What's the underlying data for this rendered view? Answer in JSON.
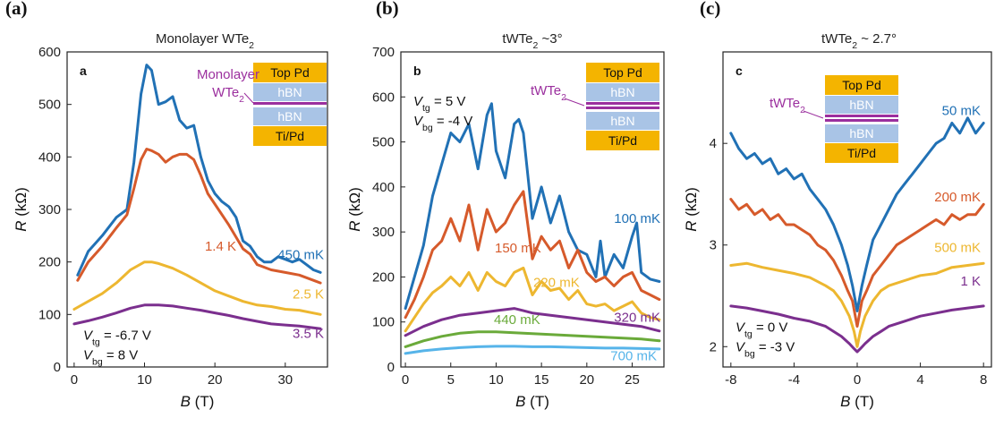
{
  "colors": {
    "blue": "#2171B5",
    "orange": "#D65A2B",
    "yellow": "#EDB730",
    "purple": "#7B2F8E",
    "green": "#6AAA3A",
    "lightblue": "#56B4E9",
    "pd": "#F4B400",
    "hbn": "#A9C4E6",
    "wte2": "#9B2F9E"
  },
  "stack_labels": {
    "top": "Top Pd",
    "hbn": "hBN",
    "bottom": "Ti/Pd"
  },
  "chart_data": [
    {
      "type": "line",
      "panel_label": "(a)",
      "inner_label": "a",
      "title": "Monolayer WTe₂",
      "xlabel": "B (T)",
      "ylabel": "R (kΩ)",
      "xlim": [
        -1,
        36
      ],
      "ylim": [
        0,
        600
      ],
      "xticks": [
        0,
        10,
        20,
        30
      ],
      "yticks": [
        0,
        100,
        200,
        300,
        400,
        500,
        600
      ],
      "device_label": [
        "Monolayer",
        "WTe₂"
      ],
      "gate_text": [
        "V_tg = -6.7 V",
        "V_bg = 8 V"
      ],
      "series": [
        {
          "name": "450 mK",
          "color": "blue",
          "x": [
            0.5,
            2,
            4,
            6,
            7.5,
            8.5,
            9.5,
            10.3,
            11,
            12,
            13,
            14,
            15,
            16,
            17,
            18,
            19,
            20,
            21,
            22,
            23,
            24,
            25,
            26,
            27,
            28,
            29,
            30,
            31,
            32,
            33,
            34,
            35
          ],
          "y": [
            175,
            220,
            250,
            285,
            300,
            390,
            520,
            575,
            565,
            500,
            505,
            515,
            470,
            455,
            460,
            400,
            355,
            330,
            315,
            305,
            285,
            240,
            230,
            210,
            200,
            200,
            210,
            205,
            200,
            205,
            195,
            185,
            180
          ]
        },
        {
          "name": "1.4 K",
          "color": "orange",
          "x": [
            0.5,
            2,
            4,
            6,
            7.5,
            8.5,
            9.5,
            10.3,
            11,
            12,
            13,
            14,
            15,
            16,
            17,
            18,
            19,
            20,
            22,
            24,
            25,
            26,
            28,
            30,
            32,
            34,
            35
          ],
          "y": [
            165,
            200,
            230,
            265,
            290,
            340,
            395,
            415,
            412,
            405,
            390,
            400,
            405,
            405,
            395,
            365,
            330,
            310,
            270,
            225,
            215,
            195,
            185,
            180,
            175,
            165,
            160
          ]
        },
        {
          "name": "2.5 K",
          "color": "yellow",
          "x": [
            0,
            2,
            4,
            6,
            8,
            10,
            11,
            12,
            14,
            16,
            18,
            20,
            22,
            24,
            26,
            28,
            30,
            32,
            35
          ],
          "y": [
            110,
            125,
            140,
            160,
            185,
            200,
            200,
            197,
            188,
            175,
            160,
            145,
            135,
            125,
            118,
            115,
            110,
            108,
            100
          ]
        },
        {
          "name": "3.5 K",
          "color": "purple",
          "x": [
            0,
            2,
            4,
            6,
            8,
            10,
            12,
            14,
            16,
            18,
            20,
            22,
            24,
            26,
            28,
            30,
            32,
            35
          ],
          "y": [
            82,
            88,
            95,
            103,
            112,
            118,
            118,
            116,
            112,
            108,
            103,
            98,
            92,
            87,
            82,
            80,
            78,
            73
          ]
        }
      ]
    },
    {
      "type": "line",
      "panel_label": "(b)",
      "inner_label": "b",
      "title": "tWTe₂ ~3°",
      "xlabel": "B (T)",
      "ylabel": "R (kΩ)",
      "xlim": [
        -0.5,
        28.5
      ],
      "ylim": [
        0,
        700
      ],
      "xticks": [
        0,
        5,
        10,
        15,
        20,
        25
      ],
      "yticks": [
        0,
        100,
        200,
        300,
        400,
        500,
        600,
        700
      ],
      "device_label": [
        "tWTe₂"
      ],
      "gate_text": [
        "V_tg = 5 V",
        "V_bg = -4 V"
      ],
      "series": [
        {
          "name": "100 mK",
          "color": "blue",
          "x": [
            0,
            1,
            2,
            3,
            4,
            5,
            6,
            7,
            8,
            9,
            9.5,
            10,
            11,
            12,
            12.5,
            13,
            14,
            15,
            16,
            17,
            18,
            19,
            20,
            21,
            21.5,
            22,
            23,
            24,
            25,
            25.5,
            26,
            27,
            28
          ],
          "y": [
            130,
            200,
            270,
            380,
            450,
            520,
            500,
            540,
            440,
            560,
            585,
            480,
            420,
            540,
            550,
            520,
            330,
            400,
            320,
            380,
            300,
            260,
            250,
            200,
            280,
            200,
            250,
            220,
            290,
            320,
            210,
            195,
            190
          ]
        },
        {
          "name": "150 mK",
          "color": "orange",
          "x": [
            0,
            1,
            2,
            3,
            4,
            5,
            6,
            7,
            8,
            9,
            10,
            11,
            12,
            13,
            14,
            15,
            16,
            17,
            18,
            19,
            20,
            21,
            22,
            23,
            24,
            25,
            26,
            27,
            28
          ],
          "y": [
            110,
            150,
            200,
            260,
            280,
            330,
            280,
            360,
            260,
            350,
            300,
            320,
            360,
            390,
            240,
            290,
            260,
            280,
            220,
            260,
            210,
            190,
            200,
            180,
            200,
            210,
            170,
            160,
            150
          ]
        },
        {
          "name": "220 mK",
          "color": "yellow",
          "x": [
            0,
            1,
            2,
            3,
            4,
            5,
            6,
            7,
            8,
            9,
            10,
            11,
            12,
            13,
            14,
            15,
            16,
            17,
            18,
            19,
            20,
            21,
            22,
            23,
            24,
            25,
            26,
            27,
            28
          ],
          "y": [
            80,
            110,
            140,
            165,
            180,
            200,
            180,
            210,
            170,
            210,
            190,
            180,
            210,
            220,
            160,
            190,
            170,
            175,
            150,
            170,
            140,
            135,
            140,
            125,
            135,
            145,
            120,
            110,
            105
          ]
        },
        {
          "name": "320 mK",
          "color": "purple",
          "x": [
            0,
            2,
            4,
            6,
            8,
            10,
            12,
            13,
            14,
            16,
            18,
            20,
            22,
            24,
            26,
            28
          ],
          "y": [
            70,
            90,
            105,
            115,
            120,
            125,
            130,
            125,
            120,
            115,
            110,
            105,
            100,
            95,
            90,
            80
          ]
        },
        {
          "name": "440 mK",
          "color": "green",
          "x": [
            0,
            2,
            4,
            6,
            8,
            10,
            12,
            14,
            16,
            18,
            20,
            22,
            24,
            26,
            28
          ],
          "y": [
            45,
            58,
            68,
            75,
            78,
            78,
            76,
            74,
            72,
            70,
            68,
            66,
            64,
            62,
            58
          ]
        },
        {
          "name": "700 mK",
          "color": "lightblue",
          "x": [
            0,
            2,
            4,
            6,
            8,
            10,
            12,
            14,
            16,
            18,
            20,
            22,
            24,
            26,
            28
          ],
          "y": [
            30,
            36,
            40,
            43,
            45,
            46,
            46,
            45,
            45,
            44,
            43,
            42,
            42,
            41,
            40
          ]
        }
      ]
    },
    {
      "type": "line",
      "panel_label": "(c)",
      "inner_label": "c",
      "title": "tWTe₂ ~ 2.7°",
      "xlabel": "B (T)",
      "ylabel": "R (kΩ)",
      "xlim": [
        -8.5,
        8.5
      ],
      "ylim": [
        1.8,
        4.9
      ],
      "xticks": [
        -8,
        -4,
        0,
        4,
        8
      ],
      "yticks": [
        2,
        3,
        4
      ],
      "device_label": [
        "tWTe₂"
      ],
      "gate_text": [
        "V_tg = 0 V",
        "V_bg = -3 V"
      ],
      "series": [
        {
          "name": "50 mK",
          "color": "blue",
          "x": [
            -8,
            -7.5,
            -7,
            -6.5,
            -6,
            -5.5,
            -5,
            -4.5,
            -4,
            -3.5,
            -3,
            -2.5,
            -2,
            -1.5,
            -1,
            -0.6,
            -0.3,
            0,
            0.3,
            0.6,
            1,
            1.5,
            2,
            2.5,
            3,
            3.5,
            4,
            4.5,
            5,
            5.5,
            6,
            6.5,
            7,
            7.5,
            8
          ],
          "y": [
            4.1,
            3.95,
            3.85,
            3.9,
            3.8,
            3.85,
            3.7,
            3.75,
            3.65,
            3.7,
            3.55,
            3.45,
            3.35,
            3.2,
            3.0,
            2.8,
            2.6,
            2.35,
            2.6,
            2.8,
            3.05,
            3.2,
            3.35,
            3.5,
            3.6,
            3.7,
            3.8,
            3.9,
            4.0,
            4.05,
            4.2,
            4.1,
            4.25,
            4.1,
            4.2
          ]
        },
        {
          "name": "200 mK",
          "color": "orange",
          "x": [
            -8,
            -7.5,
            -7,
            -6.5,
            -6,
            -5.5,
            -5,
            -4.5,
            -4,
            -3.5,
            -3,
            -2.5,
            -2,
            -1.5,
            -1,
            -0.6,
            -0.3,
            0,
            0.3,
            0.6,
            1,
            1.5,
            2,
            2.5,
            3,
            3.5,
            4,
            4.5,
            5,
            5.5,
            6,
            6.5,
            7,
            7.5,
            8
          ],
          "y": [
            3.45,
            3.35,
            3.4,
            3.3,
            3.35,
            3.25,
            3.3,
            3.2,
            3.2,
            3.15,
            3.1,
            3.0,
            2.95,
            2.85,
            2.7,
            2.55,
            2.45,
            2.2,
            2.45,
            2.55,
            2.7,
            2.8,
            2.9,
            3.0,
            3.05,
            3.1,
            3.15,
            3.2,
            3.25,
            3.2,
            3.3,
            3.25,
            3.3,
            3.3,
            3.4
          ]
        },
        {
          "name": "500 mK",
          "color": "yellow",
          "x": [
            -8,
            -7,
            -6,
            -5,
            -4,
            -3,
            -2,
            -1.5,
            -1,
            -0.5,
            -0.2,
            0,
            0.2,
            0.5,
            1,
            1.5,
            2,
            3,
            4,
            5,
            6,
            7,
            8
          ],
          "y": [
            2.8,
            2.82,
            2.78,
            2.75,
            2.72,
            2.68,
            2.6,
            2.55,
            2.45,
            2.3,
            2.15,
            2.0,
            2.15,
            2.3,
            2.45,
            2.55,
            2.6,
            2.65,
            2.7,
            2.72,
            2.78,
            2.8,
            2.82
          ]
        },
        {
          "name": "1 K",
          "color": "purple",
          "x": [
            -8,
            -7,
            -6,
            -5,
            -4,
            -3,
            -2,
            -1.5,
            -1,
            -0.5,
            -0.2,
            0,
            0.2,
            0.5,
            1,
            1.5,
            2,
            3,
            4,
            5,
            6,
            7,
            8
          ],
          "y": [
            2.4,
            2.38,
            2.35,
            2.32,
            2.28,
            2.25,
            2.2,
            2.15,
            2.1,
            2.03,
            1.98,
            1.95,
            1.98,
            2.03,
            2.1,
            2.15,
            2.2,
            2.25,
            2.3,
            2.33,
            2.36,
            2.38,
            2.4
          ]
        }
      ]
    }
  ]
}
